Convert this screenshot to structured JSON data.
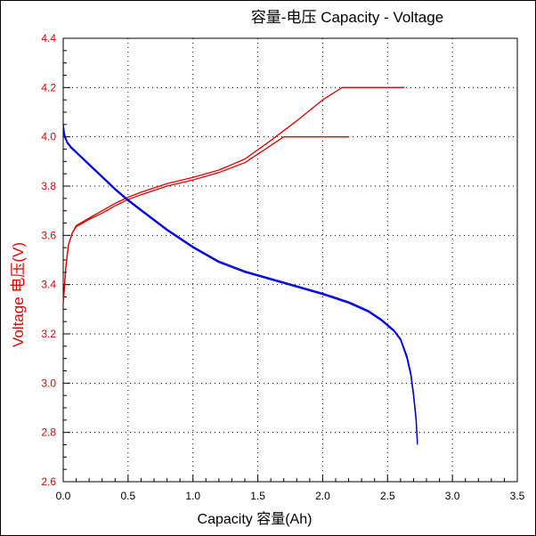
{
  "chart_data": {
    "type": "line",
    "title": "容量-电压  Capacity - Voltage",
    "xlabel": "Capacity   容量(Ah)",
    "ylabel": "Voltage   电压(V)",
    "xlim": [
      0,
      3.5
    ],
    "ylim": [
      2.6,
      4.4
    ],
    "x_ticks": [
      0.0,
      0.5,
      1.0,
      1.5,
      2.0,
      2.5,
      3.0,
      3.5
    ],
    "y_ticks": [
      2.6,
      2.8,
      3.0,
      3.2,
      3.4,
      3.6,
      3.8,
      4.0,
      4.2,
      4.4
    ],
    "grid": true,
    "series": [
      {
        "color": "#e00000",
        "x": [
          0.0,
          0.02,
          0.04,
          0.07,
          0.1,
          0.2,
          0.3,
          0.4,
          0.5,
          0.6,
          0.8,
          1.0,
          1.2,
          1.4,
          1.6,
          1.8,
          2.0,
          2.15,
          2.63
        ],
        "y": [
          3.32,
          3.47,
          3.56,
          3.61,
          3.64,
          3.67,
          3.7,
          3.73,
          3.755,
          3.775,
          3.81,
          3.835,
          3.865,
          3.91,
          3.985,
          4.065,
          4.15,
          4.2,
          4.2
        ]
      },
      {
        "color": "#e00000",
        "x": [
          0.0,
          0.02,
          0.04,
          0.07,
          0.1,
          0.2,
          0.3,
          0.4,
          0.5,
          0.6,
          0.8,
          1.0,
          1.2,
          1.4,
          1.6,
          1.7,
          2.2
        ],
        "y": [
          3.32,
          3.47,
          3.56,
          3.61,
          3.635,
          3.665,
          3.69,
          3.72,
          3.745,
          3.765,
          3.8,
          3.825,
          3.855,
          3.895,
          3.965,
          4.0,
          4.0
        ]
      },
      {
        "color": "#0000e0",
        "x": [
          0.0,
          0.01,
          0.03,
          0.06,
          0.1,
          0.2,
          0.3,
          0.4,
          0.5,
          0.6,
          0.8,
          1.0,
          1.2,
          1.4,
          1.6,
          1.8,
          2.0,
          2.2,
          2.35,
          2.45,
          2.55,
          2.6,
          2.65,
          2.68,
          2.7,
          2.72,
          2.73
        ],
        "y": [
          4.05,
          4.01,
          3.98,
          3.96,
          3.94,
          3.89,
          3.84,
          3.79,
          3.745,
          3.705,
          3.625,
          3.555,
          3.495,
          3.455,
          3.425,
          3.395,
          3.365,
          3.33,
          3.295,
          3.26,
          3.215,
          3.18,
          3.11,
          3.04,
          2.96,
          2.86,
          2.76
        ]
      },
      {
        "color": "#0000e0",
        "x": [
          0.0,
          0.01,
          0.03,
          0.06,
          0.1,
          0.2,
          0.3,
          0.4,
          0.5,
          0.6,
          0.8,
          1.0,
          1.2,
          1.4,
          1.6,
          1.8,
          2.0,
          2.2,
          2.35,
          2.45,
          2.55,
          2.6,
          2.65,
          2.68,
          2.7,
          2.72,
          2.73
        ],
        "y": [
          4.05,
          4.0,
          3.975,
          3.955,
          3.935,
          3.885,
          3.835,
          3.785,
          3.74,
          3.7,
          3.62,
          3.55,
          3.49,
          3.45,
          3.42,
          3.39,
          3.36,
          3.325,
          3.29,
          3.255,
          3.21,
          3.175,
          3.1,
          3.03,
          2.95,
          2.85,
          2.75
        ]
      }
    ]
  }
}
